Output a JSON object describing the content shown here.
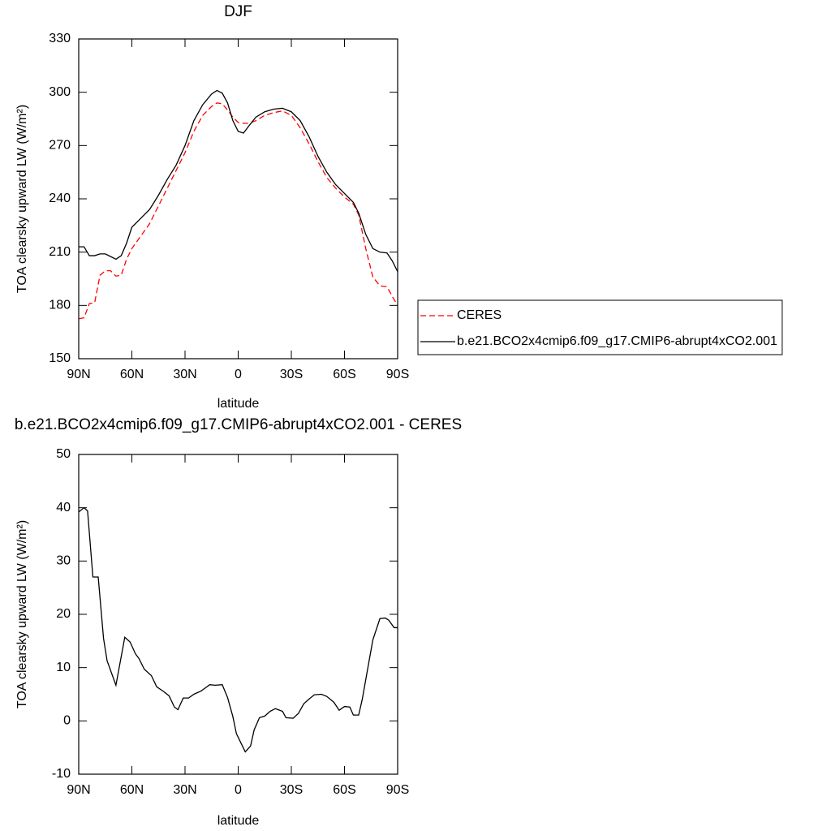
{
  "chart_data": [
    {
      "type": "line",
      "title": "DJF",
      "xlabel": "latitude",
      "ylabel": "TOA clearsky upward LW (W/m²)",
      "x": [
        90,
        87,
        84,
        81,
        78,
        75,
        72,
        69,
        66,
        63,
        60,
        55,
        50,
        45,
        40,
        35,
        30,
        25,
        20,
        15,
        12,
        9,
        6,
        3,
        0,
        -3,
        -6,
        -10,
        -15,
        -20,
        -25,
        -30,
        -35,
        -40,
        -45,
        -50,
        -55,
        -60,
        -65,
        -68,
        -72,
        -76,
        -80,
        -84,
        -87,
        -90
      ],
      "series": [
        {
          "name": "CERES",
          "color": "#ff0000",
          "style": "dashed",
          "values": [
            172.5,
            173,
            181,
            181.5,
            197,
            199.5,
            199.5,
            196.5,
            197,
            206,
            212,
            219,
            226,
            236,
            246,
            256,
            266,
            278,
            287,
            292,
            294,
            293.5,
            290,
            286,
            283,
            282.5,
            282.5,
            284,
            287,
            288.5,
            289.5,
            287,
            280,
            271,
            261,
            252,
            246,
            241,
            237,
            231,
            212,
            196,
            191,
            190.5,
            185,
            180
          ]
        },
        {
          "name": "b.e21.BCO2x4cmip6.f09_g17.CMIP6-abrupt4xCO2.001",
          "color": "#000000",
          "style": "solid",
          "values": [
            213,
            213,
            208,
            208,
            209,
            209,
            207.5,
            206,
            208,
            215,
            224,
            229,
            234,
            242,
            251,
            259,
            270,
            284,
            293,
            299,
            301,
            299.5,
            294,
            284,
            278,
            277,
            281,
            286,
            289,
            290.5,
            291,
            289,
            284,
            275,
            264,
            255,
            248,
            243,
            238,
            232,
            220,
            212,
            210,
            209.5,
            205,
            199
          ]
        }
      ],
      "xlim": [
        90,
        -90
      ],
      "xticks": [
        {
          "value": 90,
          "label": "90N"
        },
        {
          "value": 60,
          "label": "60N"
        },
        {
          "value": 30,
          "label": "30N"
        },
        0,
        {
          "value": -30,
          "label": "30S"
        },
        {
          "value": -60,
          "label": "60S"
        },
        {
          "value": -90,
          "label": "90S"
        }
      ],
      "ylim": [
        150,
        330
      ],
      "yticks": [
        150,
        180,
        210,
        240,
        270,
        300,
        330
      ],
      "legend": "right"
    },
    {
      "type": "line",
      "title": "b.e21.BCO2x4cmip6.f09_g17.CMIP6-abrupt4xCO2.001 - CERES",
      "xlabel": "latitude",
      "ylabel": "TOA clearsky upward LW (W/m²)",
      "x": [
        90,
        87,
        85,
        82,
        79,
        76,
        74,
        69,
        64,
        61,
        58,
        56,
        53,
        49,
        46,
        42,
        39,
        36,
        34,
        31,
        28,
        25,
        21,
        16,
        13,
        9,
        6,
        3,
        1,
        -4,
        -7,
        -9,
        -12,
        -15,
        -18,
        -21,
        -25,
        -27,
        -31,
        -34,
        -37,
        -40,
        -43,
        -47,
        -50,
        -54,
        -57,
        -60,
        -63,
        -65,
        -68,
        -70,
        -73,
        -76,
        -80,
        -83,
        -85,
        -88,
        -90
      ],
      "series": [
        {
          "color": "#000000",
          "style": "solid",
          "values": [
            39.2,
            40,
            39.4,
            27,
            27,
            15.5,
            11.3,
            6.7,
            15.7,
            14.8,
            12.6,
            11.7,
            9.7,
            8.5,
            6.4,
            5.5,
            4.7,
            2.6,
            2.1,
            4.3,
            4.3,
            5,
            5.6,
            6.8,
            6.7,
            6.8,
            4.4,
            0.8,
            -2.4,
            -5.8,
            -4.7,
            -1.7,
            0.6,
            0.9,
            1.8,
            2.3,
            1.8,
            0.6,
            0.5,
            1.4,
            3.2,
            4.1,
            4.9,
            5,
            4.6,
            3.5,
            2,
            2.7,
            2.6,
            1.1,
            1.1,
            4,
            9.6,
            15.2,
            19.2,
            19.3,
            18.9,
            17.5,
            17.5
          ]
        }
      ],
      "xlim": [
        90,
        -90
      ],
      "xticks": [
        {
          "value": 90,
          "label": "90N"
        },
        {
          "value": 60,
          "label": "60N"
        },
        {
          "value": 30,
          "label": "30N"
        },
        0,
        {
          "value": -30,
          "label": "30S"
        },
        {
          "value": -60,
          "label": "60S"
        },
        {
          "value": -90,
          "label": "90S"
        }
      ],
      "ylim": [
        -10,
        50
      ],
      "yticks": [
        -10,
        0,
        10,
        20,
        30,
        40,
        50
      ]
    }
  ]
}
